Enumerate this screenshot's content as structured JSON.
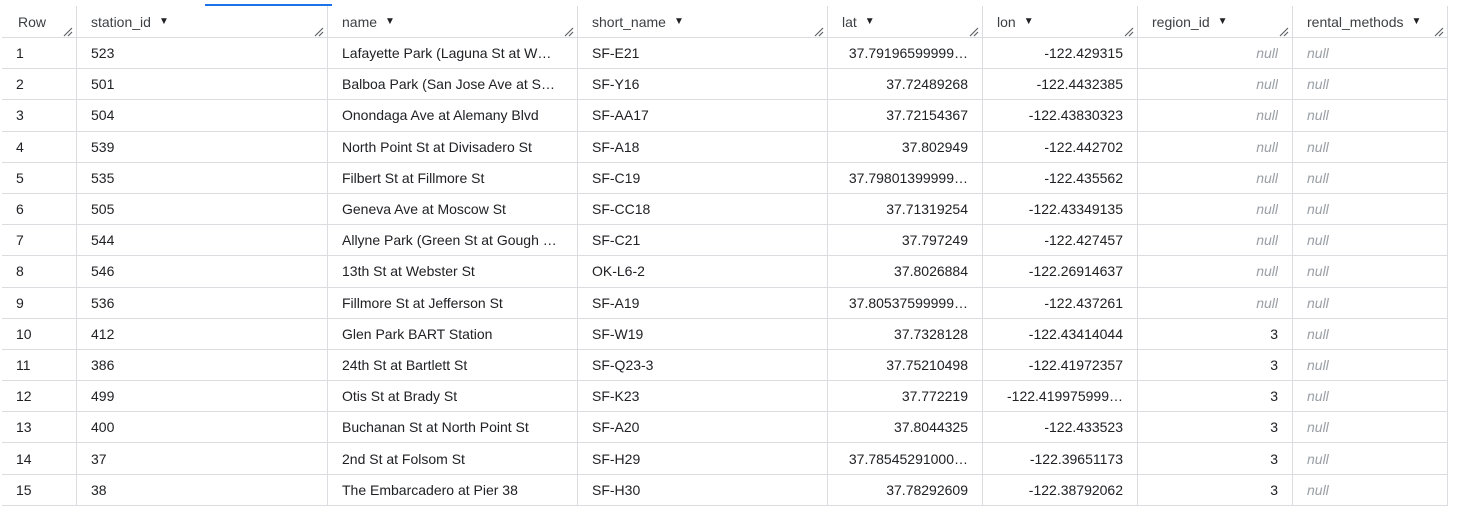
{
  "columns": [
    {
      "label": "Row",
      "sortable": false
    },
    {
      "label": "station_id",
      "sortable": true
    },
    {
      "label": "name",
      "sortable": true
    },
    {
      "label": "short_name",
      "sortable": true
    },
    {
      "label": "lat",
      "sortable": true
    },
    {
      "label": "lon",
      "sortable": true
    },
    {
      "label": "region_id",
      "sortable": true
    },
    {
      "label": "rental_methods",
      "sortable": true
    }
  ],
  "rows": [
    {
      "row": "1",
      "station_id": "523",
      "name": "Lafayette Park (Laguna St at W…",
      "short_name": "SF-E21",
      "lat": "37.79196599999…",
      "lon": "-122.429315",
      "region_id": "null",
      "rental_methods": "null"
    },
    {
      "row": "2",
      "station_id": "501",
      "name": "Balboa Park (San Jose Ave at S…",
      "short_name": "SF-Y16",
      "lat": "37.72489268",
      "lon": "-122.4432385",
      "region_id": "null",
      "rental_methods": "null"
    },
    {
      "row": "3",
      "station_id": "504",
      "name": "Onondaga Ave at Alemany Blvd",
      "short_name": "SF-AA17",
      "lat": "37.72154367",
      "lon": "-122.43830323",
      "region_id": "null",
      "rental_methods": "null"
    },
    {
      "row": "4",
      "station_id": "539",
      "name": "North Point St at Divisadero St",
      "short_name": "SF-A18",
      "lat": "37.802949",
      "lon": "-122.442702",
      "region_id": "null",
      "rental_methods": "null"
    },
    {
      "row": "5",
      "station_id": "535",
      "name": "Filbert St at Fillmore St",
      "short_name": "SF-C19",
      "lat": "37.79801399999…",
      "lon": "-122.435562",
      "region_id": "null",
      "rental_methods": "null"
    },
    {
      "row": "6",
      "station_id": "505",
      "name": "Geneva Ave at Moscow St",
      "short_name": "SF-CC18",
      "lat": "37.71319254",
      "lon": "-122.43349135",
      "region_id": "null",
      "rental_methods": "null"
    },
    {
      "row": "7",
      "station_id": "544",
      "name": "Allyne Park (Green St at Gough …",
      "short_name": "SF-C21",
      "lat": "37.797249",
      "lon": "-122.427457",
      "region_id": "null",
      "rental_methods": "null"
    },
    {
      "row": "8",
      "station_id": "546",
      "name": "13th St at Webster St",
      "short_name": "OK-L6-2",
      "lat": "37.8026884",
      "lon": "-122.26914637",
      "region_id": "null",
      "rental_methods": "null"
    },
    {
      "row": "9",
      "station_id": "536",
      "name": "Fillmore St at Jefferson St",
      "short_name": "SF-A19",
      "lat": "37.80537599999…",
      "lon": "-122.437261",
      "region_id": "null",
      "rental_methods": "null"
    },
    {
      "row": "10",
      "station_id": "412",
      "name": "Glen Park BART Station",
      "short_name": "SF-W19",
      "lat": "37.7328128",
      "lon": "-122.43414044",
      "region_id": "3",
      "rental_methods": "null"
    },
    {
      "row": "11",
      "station_id": "386",
      "name": "24th St at Bartlett St",
      "short_name": "SF-Q23-3",
      "lat": "37.75210498",
      "lon": "-122.41972357",
      "region_id": "3",
      "rental_methods": "null"
    },
    {
      "row": "12",
      "station_id": "499",
      "name": "Otis St at Brady St",
      "short_name": "SF-K23",
      "lat": "37.772219",
      "lon": "-122.419975999…",
      "region_id": "3",
      "rental_methods": "null"
    },
    {
      "row": "13",
      "station_id": "400",
      "name": "Buchanan St at North Point St",
      "short_name": "SF-A20",
      "lat": "37.8044325",
      "lon": "-122.433523",
      "region_id": "3",
      "rental_methods": "null"
    },
    {
      "row": "14",
      "station_id": "37",
      "name": "2nd St at Folsom St",
      "short_name": "SF-H29",
      "lat": "37.78545291000…",
      "lon": "-122.39651173",
      "region_id": "3",
      "rental_methods": "null"
    },
    {
      "row": "15",
      "station_id": "38",
      "name": "The Embarcadero at Pier 38",
      "short_name": "SF-H30",
      "lat": "37.78292609",
      "lon": "-122.38792062",
      "region_id": "3",
      "rental_methods": "null"
    }
  ],
  "icons": {
    "sort": "arrow-down-icon",
    "resize": "column-resize-icon"
  },
  "colors": {
    "border": "#dadce0",
    "null_text": "#9aa0a6",
    "accent": "#1a73e8"
  }
}
